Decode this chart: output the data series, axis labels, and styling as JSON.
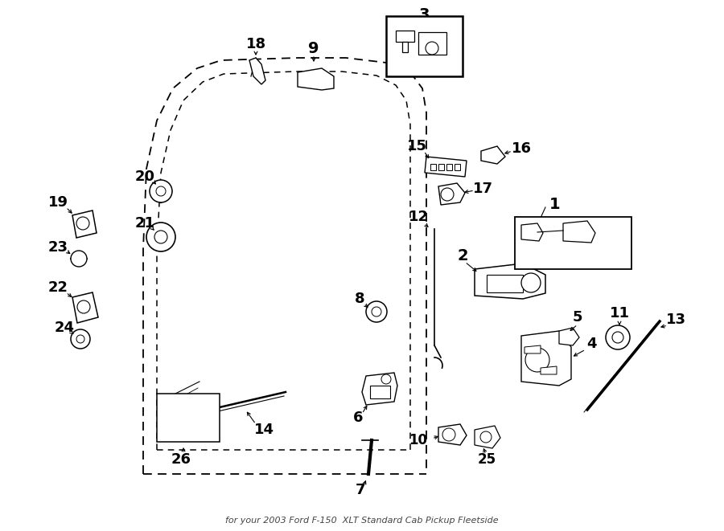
{
  "bg_color": "#ffffff",
  "subtitle": "for your 2003 Ford F-150  XLT Standard Cab Pickup Fleetside",
  "fig_w": 9.0,
  "fig_h": 6.61,
  "dpi": 100
}
